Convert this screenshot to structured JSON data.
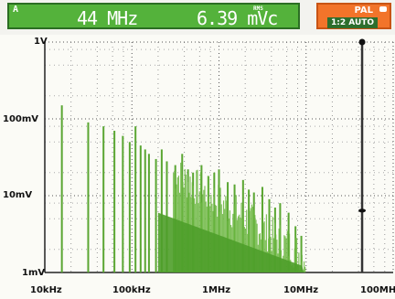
{
  "readout": {
    "channel": "A",
    "frequency": "44 MHz",
    "amplitude": "6.39 mVc",
    "amplitude_note": "RMS"
  },
  "status": {
    "standard": "PAL",
    "mode": "1:2 AUTO"
  },
  "colors": {
    "readout_bg": "#54b23b",
    "status_bg": "#f2742a",
    "spectrum": "#5aa632",
    "cursor": "#333333"
  },
  "chart_data": {
    "type": "bar",
    "x_scale": "log",
    "y_scale": "log",
    "xlim_hz": [
      10000,
      100000000
    ],
    "ylim_v": [
      0.001,
      1
    ],
    "x_ticks": [
      "10kHz",
      "100kHz",
      "1MHz",
      "10MHz",
      "100MHz"
    ],
    "y_ticks": [
      "1V",
      "100mV",
      "10mV",
      "1mV"
    ],
    "cursor_freq_hz": 44000000,
    "cursor_level_v": 0.00639,
    "grid": true,
    "spectrum": {
      "x_hz": [
        15700,
        31500,
        47200,
        63000,
        78700,
        94400,
        110000,
        126000,
        142000,
        157000,
        189000,
        220000,
        252000,
        315000,
        378000,
        441000,
        504000,
        630000,
        756000,
        882000,
        1000000,
        1260000,
        1510000,
        1890000,
        2200000,
        2520000,
        3150000,
        3780000,
        4410000,
        5040000,
        6300000,
        7560000,
        8820000
      ],
      "values_v": [
        0.15,
        0.09,
        0.08,
        0.07,
        0.06,
        0.05,
        0.08,
        0.045,
        0.04,
        0.035,
        0.03,
        0.04,
        0.028,
        0.025,
        0.035,
        0.022,
        0.02,
        0.025,
        0.018,
        0.02,
        0.022,
        0.015,
        0.014,
        0.016,
        0.012,
        0.011,
        0.013,
        0.009,
        0.007,
        0.008,
        0.006,
        0.004,
        0.003
      ]
    }
  }
}
